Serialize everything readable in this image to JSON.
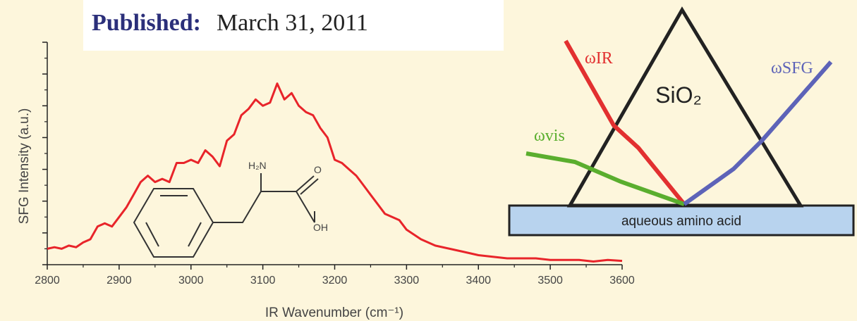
{
  "published": {
    "label": "Published:",
    "date": "March 31, 2011"
  },
  "chart_data": {
    "type": "line",
    "title": "",
    "xlabel": "IR Wavenumber (cm⁻¹)",
    "ylabel": "SFG Intensity (a.u.)",
    "xlim": [
      2800,
      3600
    ],
    "ylim": [
      0,
      7
    ],
    "grid": false,
    "xticks": [
      "2800",
      "2900",
      "3000",
      "3100",
      "3200",
      "3300",
      "3400",
      "3500",
      "3600"
    ],
    "series": [
      {
        "color": "#e8242a",
        "x": [
          2800,
          2810,
          2820,
          2830,
          2840,
          2850,
          2860,
          2870,
          2880,
          2890,
          2900,
          2910,
          2920,
          2930,
          2940,
          2950,
          2960,
          2970,
          2980,
          2990,
          3000,
          3010,
          3020,
          3030,
          3040,
          3050,
          3060,
          3070,
          3080,
          3090,
          3100,
          3110,
          3120,
          3130,
          3140,
          3150,
          3160,
          3170,
          3180,
          3190,
          3200,
          3210,
          3220,
          3230,
          3240,
          3250,
          3260,
          3270,
          3280,
          3290,
          3300,
          3320,
          3340,
          3360,
          3380,
          3400,
          3420,
          3440,
          3460,
          3480,
          3500,
          3520,
          3540,
          3560,
          3580,
          3600
        ],
        "y": [
          0.5,
          0.55,
          0.5,
          0.6,
          0.55,
          0.7,
          0.8,
          1.2,
          1.3,
          1.2,
          1.5,
          1.8,
          2.2,
          2.6,
          2.8,
          2.6,
          2.7,
          2.6,
          3.2,
          3.2,
          3.3,
          3.2,
          3.6,
          3.4,
          3.1,
          3.9,
          4.1,
          4.7,
          4.9,
          5.2,
          5.0,
          5.1,
          5.7,
          5.2,
          5.4,
          5.0,
          4.8,
          4.7,
          4.3,
          4.0,
          3.3,
          3.2,
          3.0,
          2.8,
          2.5,
          2.2,
          1.9,
          1.6,
          1.5,
          1.4,
          1.1,
          0.8,
          0.6,
          0.5,
          0.4,
          0.3,
          0.25,
          0.2,
          0.2,
          0.2,
          0.15,
          0.15,
          0.15,
          0.1,
          0.15,
          0.12
        ]
      }
    ],
    "annotations": {
      "nh2": "H₂N",
      "oxygen": "O",
      "oh": "OH"
    }
  },
  "diagram": {
    "crystal": "SiO₂",
    "omega_ir": "ωIR",
    "omega_vis": "ωvis",
    "omega_sfg": "ωSFG",
    "substrate_label": "aqueous amino acid",
    "colors": {
      "ir": "#e23030",
      "vis": "#5aae2e",
      "sfg": "#5d63b8",
      "prism": "#222222",
      "substrate": "#b8d3ee"
    }
  }
}
